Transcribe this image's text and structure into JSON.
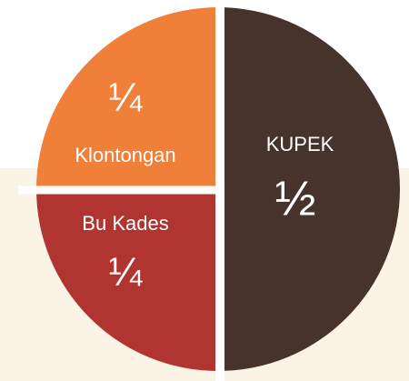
{
  "chart_data": {
    "type": "pie",
    "categories": [
      "KUPEK",
      "Bu Kades",
      "Klontongan"
    ],
    "values": [
      0.5,
      0.25,
      0.25
    ],
    "value_labels": [
      "½",
      "¼",
      "¼"
    ],
    "colors": [
      "#45332c",
      "#b03530",
      "#f07f3a"
    ]
  }
}
